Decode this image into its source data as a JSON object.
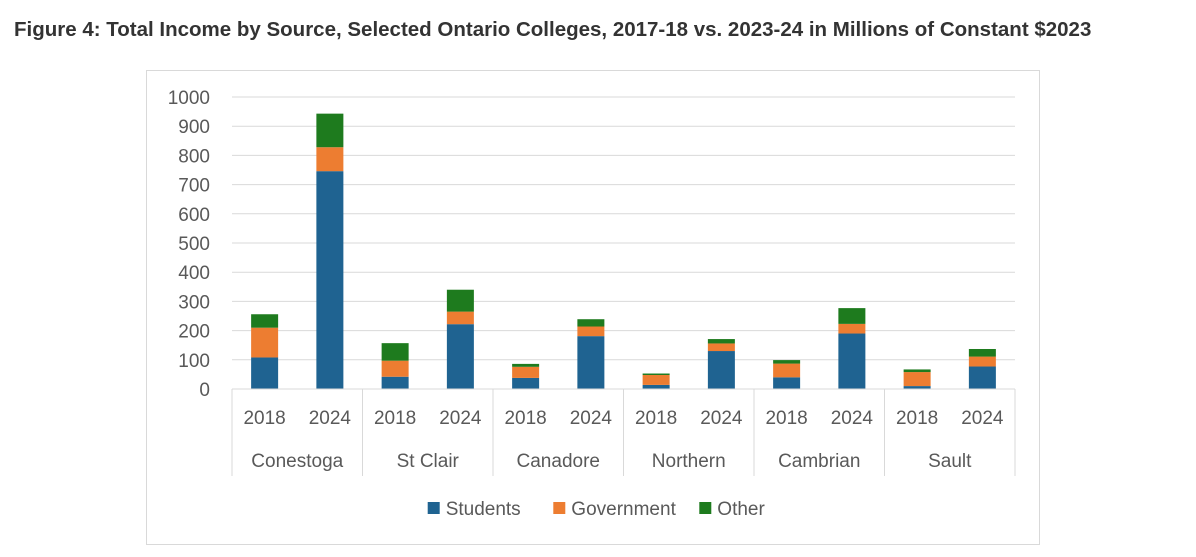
{
  "figure": {
    "title": "Figure 4: Total Income by Source, Selected Ontario Colleges, 2017-18 vs. 2023-24 in Millions of Constant $2023"
  },
  "chart_data": {
    "type": "bar",
    "stacked": true,
    "groups": [
      "Conestoga",
      "St Clair",
      "Canadore",
      "Northern",
      "Cambrian",
      "Sault"
    ],
    "years": [
      "2018",
      "2024"
    ],
    "categories": [
      "2018",
      "2024",
      "2018",
      "2024",
      "2018",
      "2024",
      "2018",
      "2024",
      "2018",
      "2024",
      "2018",
      "2024"
    ],
    "series": [
      {
        "name": "Students",
        "color": "#1f6391",
        "values": [
          108,
          746,
          42,
          222,
          38,
          181,
          14,
          130,
          40,
          190,
          10,
          77
        ]
      },
      {
        "name": "Government",
        "color": "#ed7d31",
        "values": [
          102,
          82,
          55,
          43,
          38,
          33,
          34,
          26,
          47,
          33,
          48,
          34
        ]
      },
      {
        "name": "Other",
        "color": "#1e7b1e",
        "values": [
          46,
          115,
          60,
          75,
          10,
          25,
          5,
          15,
          12,
          54,
          9,
          26
        ]
      }
    ],
    "ylim": [
      0,
      1000
    ],
    "yticks": [
      0,
      100,
      200,
      300,
      400,
      500,
      600,
      700,
      800,
      900,
      1000
    ],
    "grid": true,
    "legend_position": "bottom"
  }
}
